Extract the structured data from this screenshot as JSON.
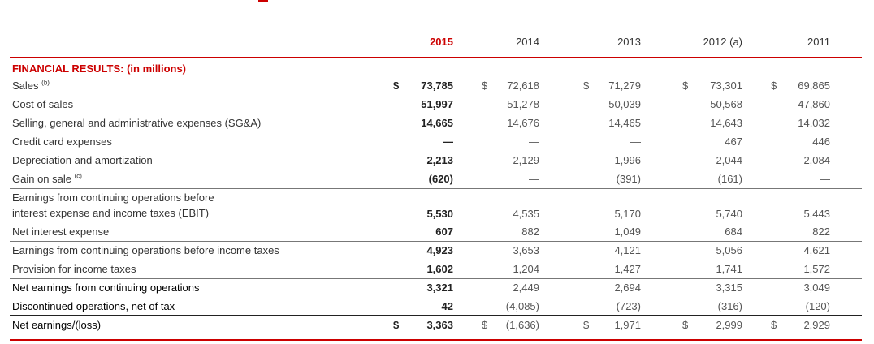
{
  "years": [
    "2015",
    "2014",
    "2013",
    "2012 (a)",
    "2011"
  ],
  "section_title": "FINANCIAL RESULTS: (in millions)",
  "rows": [
    {
      "label": "Sales",
      "note": "(b)",
      "values": [
        "73,785",
        "72,618",
        "71,279",
        "73,301",
        "69,865"
      ],
      "dollar": true
    },
    {
      "label": "Cost of sales",
      "note": "",
      "values": [
        "51,997",
        "51,278",
        "50,039",
        "50,568",
        "47,860"
      ]
    },
    {
      "label": "Selling, general and administrative expenses (SG&A)",
      "note": "",
      "values": [
        "14,665",
        "14,676",
        "14,465",
        "14,643",
        "14,032"
      ]
    },
    {
      "label": "Credit card expenses",
      "note": "",
      "values": [
        "—",
        "—",
        "—",
        "467",
        "446"
      ]
    },
    {
      "label": "Depreciation and amortization",
      "note": "",
      "values": [
        "2,213",
        "2,129",
        "1,996",
        "2,044",
        "2,084"
      ]
    },
    {
      "label": "Gain on sale",
      "note": "(c)",
      "values": [
        "(620)",
        "—",
        "(391)",
        "(161)",
        "—"
      ]
    },
    {
      "label": "Earnings from continuing operations before",
      "label2": "interest expense and income taxes (EBIT)",
      "note": "",
      "values": [
        "5,530",
        "4,535",
        "5,170",
        "5,740",
        "5,443"
      ]
    },
    {
      "label": "Net interest expense",
      "note": "",
      "values": [
        "607",
        "882",
        "1,049",
        "684",
        "822"
      ]
    },
    {
      "label": "Earnings from continuing operations before income taxes",
      "note": "",
      "values": [
        "4,923",
        "3,653",
        "4,121",
        "5,056",
        "4,621"
      ]
    },
    {
      "label": "Provision for income taxes",
      "note": "",
      "values": [
        "1,602",
        "1,204",
        "1,427",
        "1,741",
        "1,572"
      ]
    },
    {
      "label": "Net earnings from continuing operations",
      "note": "",
      "values": [
        "3,321",
        "2,449",
        "2,694",
        "3,315",
        "3,049"
      ]
    },
    {
      "label": "Discontinued operations, net of tax",
      "note": "",
      "values": [
        "42",
        "(4,085)",
        "(723)",
        "(316)",
        "(120)"
      ]
    },
    {
      "label": "Net earnings/(loss)",
      "note": "",
      "values": [
        "3,363",
        "(1,636)",
        "1,971",
        "2,999",
        "2,929"
      ],
      "dollar": true
    }
  ],
  "currency_symbol": "$",
  "colors": {
    "accent": "#cc0000",
    "text": "#333333"
  }
}
